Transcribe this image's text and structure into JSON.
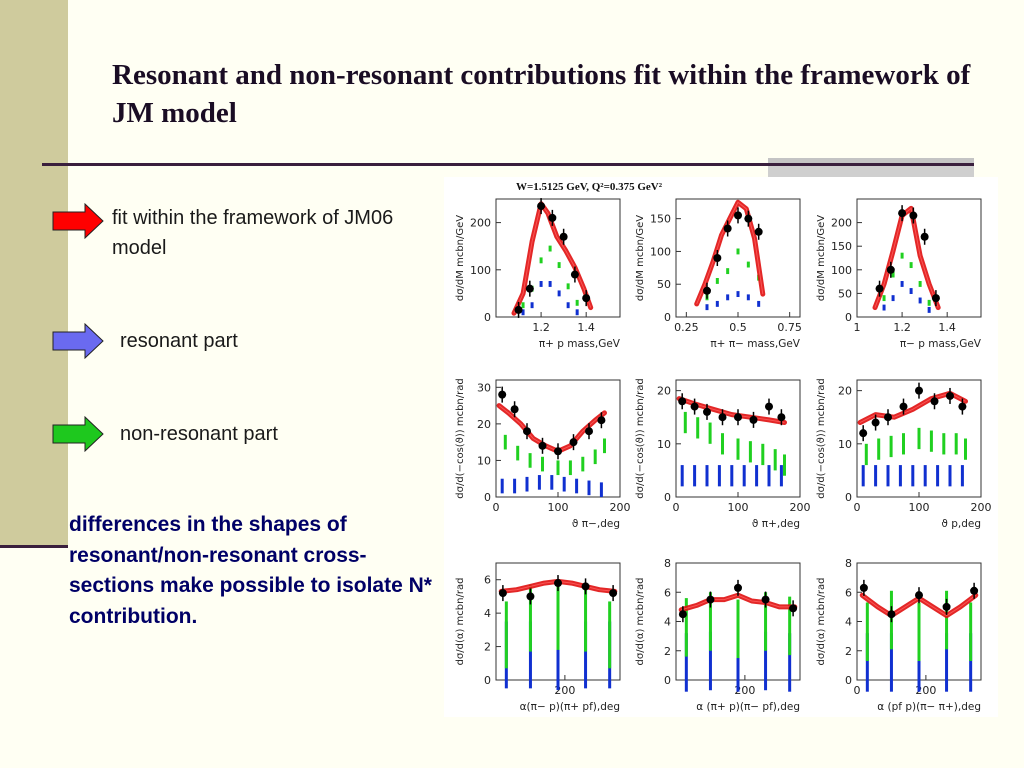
{
  "title": "Resonant and non-resonant contributions fit within the framework of JM model",
  "bullets": [
    {
      "text": "fit within the framework of JM06 model",
      "color": "#ff0000",
      "icon": "red-arrow-icon"
    },
    {
      "text": "resonant part",
      "color": "#6a6af0",
      "icon": "blue-arrow-icon"
    },
    {
      "text": "non-resonant part",
      "color": "#1ec81e",
      "icon": "green-arrow-icon"
    }
  ],
  "conclusion": "differences in the shapes of resonant/non-resonant cross-sections make possible to isolate N* contribution.",
  "colors": {
    "fit": "#e01010",
    "data": "#000000",
    "resonant": "#1030d0",
    "nonresonant": "#20d020",
    "text_conclusion": "#000066"
  },
  "chart_data": {
    "header": "W=1.5125 GeV, Q²=0.375 GeV²",
    "panels": [
      {
        "type": "scatter",
        "xlabel": "π+ p mass,GeV",
        "ylabel": "dσ/dM mcbn/GeV",
        "xlim": [
          1.0,
          1.55
        ],
        "ylim": [
          0,
          250
        ],
        "xticks": [
          {
            "v": 1.2,
            "t": "1.2"
          },
          {
            "v": 1.4,
            "t": "1.4"
          }
        ],
        "yticks": [
          {
            "v": 0,
            "t": "0"
          },
          {
            "v": 100,
            "t": "100"
          },
          {
            "v": 200,
            "t": "200"
          }
        ],
        "data": {
          "x": [
            1.1,
            1.15,
            1.2,
            1.25,
            1.3,
            1.35,
            1.4
          ],
          "y": [
            15,
            60,
            235,
            210,
            170,
            90,
            40
          ]
        },
        "fit": {
          "x": [
            1.08,
            1.12,
            1.16,
            1.2,
            1.23,
            1.27,
            1.31,
            1.35,
            1.39,
            1.42
          ],
          "y": [
            8,
            50,
            160,
            240,
            220,
            170,
            140,
            105,
            60,
            20
          ]
        },
        "nonresonant": {
          "x": [
            1.12,
            1.16,
            1.2,
            1.24,
            1.28,
            1.32,
            1.36
          ],
          "y": [
            25,
            60,
            120,
            145,
            110,
            65,
            30
          ]
        },
        "resonant": {
          "x": [
            1.12,
            1.16,
            1.2,
            1.24,
            1.28,
            1.32,
            1.36
          ],
          "y": [
            10,
            25,
            70,
            70,
            50,
            25,
            10
          ]
        }
      },
      {
        "type": "scatter",
        "xlabel": "π+ π− mass,GeV",
        "ylabel": "dσ/dM mcbn/GeV",
        "xlim": [
          0.2,
          0.8
        ],
        "ylim": [
          0,
          180
        ],
        "xticks": [
          {
            "v": 0.25,
            "t": "0.25"
          },
          {
            "v": 0.5,
            "t": "0.5"
          },
          {
            "v": 0.75,
            "t": "0.75"
          }
        ],
        "yticks": [
          {
            "v": 0,
            "t": "0"
          },
          {
            "v": 50,
            "t": "50"
          },
          {
            "v": 100,
            "t": "100"
          },
          {
            "v": 150,
            "t": "150"
          }
        ],
        "data": {
          "x": [
            0.35,
            0.4,
            0.45,
            0.5,
            0.55,
            0.6
          ],
          "y": [
            40,
            90,
            135,
            155,
            150,
            130
          ]
        },
        "fit": {
          "x": [
            0.3,
            0.34,
            0.38,
            0.42,
            0.46,
            0.5,
            0.54,
            0.58,
            0.62
          ],
          "y": [
            20,
            50,
            85,
            125,
            150,
            175,
            165,
            120,
            35
          ]
        },
        "nonresonant": {
          "x": [
            0.35,
            0.4,
            0.45,
            0.5,
            0.55,
            0.6
          ],
          "y": [
            30,
            55,
            70,
            100,
            80,
            60
          ]
        },
        "resonant": {
          "x": [
            0.35,
            0.4,
            0.45,
            0.5,
            0.55,
            0.6
          ],
          "y": [
            15,
            20,
            30,
            35,
            30,
            20
          ]
        }
      },
      {
        "type": "scatter",
        "xlabel": "π− p mass,GeV",
        "ylabel": "dσ/dM mcbn/GeV",
        "xlim": [
          1.0,
          1.55
        ],
        "ylim": [
          0,
          250
        ],
        "xticks": [
          {
            "v": 1.0,
            "t": "1"
          },
          {
            "v": 1.2,
            "t": "1.2"
          },
          {
            "v": 1.4,
            "t": "1.4"
          }
        ],
        "yticks": [
          {
            "v": 0,
            "t": "0"
          },
          {
            "v": 50,
            "t": "50"
          },
          {
            "v": 100,
            "t": "100"
          },
          {
            "v": 150,
            "t": "150"
          },
          {
            "v": 200,
            "t": "200"
          }
        ],
        "data": {
          "x": [
            1.1,
            1.15,
            1.2,
            1.25,
            1.3,
            1.35
          ],
          "y": [
            60,
            100,
            220,
            215,
            170,
            40
          ]
        },
        "fit": {
          "x": [
            1.08,
            1.12,
            1.16,
            1.2,
            1.24,
            1.28,
            1.32,
            1.36
          ],
          "y": [
            20,
            70,
            140,
            215,
            230,
            130,
            70,
            20
          ]
        },
        "nonresonant": {
          "x": [
            1.12,
            1.16,
            1.2,
            1.24,
            1.28,
            1.32
          ],
          "y": [
            40,
            90,
            130,
            110,
            70,
            30
          ]
        },
        "resonant": {
          "x": [
            1.12,
            1.16,
            1.2,
            1.24,
            1.28,
            1.32
          ],
          "y": [
            20,
            40,
            70,
            55,
            35,
            15
          ]
        }
      },
      {
        "type": "scatter",
        "xlabel": "ϑ π−,deg",
        "ylabel": "dσ/d(−cos(ϑ)) mcbn/rad",
        "xlim": [
          0,
          200
        ],
        "ylim": [
          0,
          32
        ],
        "xticks": [
          {
            "v": 0,
            "t": "0"
          },
          {
            "v": 100,
            "t": "100"
          },
          {
            "v": 200,
            "t": "200"
          }
        ],
        "yticks": [
          {
            "v": 0,
            "t": "0"
          },
          {
            "v": 10,
            "t": "10"
          },
          {
            "v": 20,
            "t": "20"
          },
          {
            "v": 30,
            "t": "30"
          }
        ],
        "data": {
          "x": [
            10,
            30,
            50,
            75,
            100,
            125,
            150,
            170
          ],
          "y": [
            28,
            24,
            18,
            14,
            12.5,
            15,
            18,
            21
          ]
        },
        "fit": {
          "x": [
            5,
            20,
            40,
            60,
            80,
            100,
            120,
            140,
            160,
            175
          ],
          "y": [
            25,
            23,
            20,
            16,
            14,
            12.5,
            14,
            18,
            21,
            23
          ]
        },
        "nonresonant": {
          "x": [
            15,
            35,
            55,
            75,
            100,
            120,
            140,
            160,
            175
          ],
          "y": [
            15,
            12,
            10,
            9,
            8,
            8,
            9,
            11,
            14
          ]
        },
        "resonant": {
          "x": [
            10,
            30,
            50,
            70,
            90,
            110,
            130,
            150,
            170
          ],
          "y": [
            3,
            3,
            3.5,
            4,
            4,
            3.5,
            3,
            2.5,
            2
          ]
        }
      },
      {
        "type": "scatter",
        "xlabel": "ϑ π+,deg",
        "ylabel": "dσ/d(−cos(ϑ)) mcbn/rad",
        "xlim": [
          0,
          200
        ],
        "ylim": [
          0,
          22
        ],
        "xticks": [
          {
            "v": 0,
            "t": "0"
          },
          {
            "v": 100,
            "t": "100"
          },
          {
            "v": 200,
            "t": "200"
          }
        ],
        "yticks": [
          {
            "v": 0,
            "t": "0"
          },
          {
            "v": 10,
            "t": "10"
          },
          {
            "v": 20,
            "t": "20"
          }
        ],
        "data": {
          "x": [
            10,
            30,
            50,
            75,
            100,
            125,
            150,
            170
          ],
          "y": [
            18,
            17,
            16,
            15,
            15,
            14.5,
            17,
            15
          ]
        },
        "fit": {
          "x": [
            5,
            30,
            60,
            90,
            120,
            150,
            175
          ],
          "y": [
            18.5,
            17.5,
            16.5,
            15.5,
            15,
            14.5,
            14
          ]
        },
        "nonresonant": {
          "x": [
            15,
            35,
            55,
            75,
            100,
            120,
            140,
            160,
            175
          ],
          "y": [
            14,
            13,
            12,
            10,
            9,
            8.5,
            8,
            7,
            6
          ]
        },
        "resonant": {
          "x": [
            10,
            30,
            50,
            70,
            90,
            110,
            130,
            150,
            170
          ],
          "y": [
            4,
            4,
            4,
            4,
            4,
            4,
            4,
            4,
            4
          ]
        }
      },
      {
        "type": "scatter",
        "xlabel": "ϑ p,deg",
        "ylabel": "dσ/d(−cos(ϑ)) mcbn/rad",
        "xlim": [
          0,
          200
        ],
        "ylim": [
          0,
          22
        ],
        "xticks": [
          {
            "v": 0,
            "t": "0"
          },
          {
            "v": 100,
            "t": "100"
          },
          {
            "v": 200,
            "t": "200"
          }
        ],
        "yticks": [
          {
            "v": 0,
            "t": "0"
          },
          {
            "v": 10,
            "t": "10"
          },
          {
            "v": 20,
            "t": "20"
          }
        ],
        "data": {
          "x": [
            10,
            30,
            50,
            75,
            100,
            125,
            150,
            170
          ],
          "y": [
            12,
            14,
            15,
            17,
            20,
            18,
            19,
            17
          ]
        },
        "fit": {
          "x": [
            5,
            30,
            60,
            90,
            120,
            150,
            175
          ],
          "y": [
            14,
            15.5,
            15,
            16.5,
            18.5,
            19.5,
            18
          ]
        },
        "nonresonant": {
          "x": [
            15,
            35,
            55,
            75,
            100,
            120,
            140,
            160,
            175
          ],
          "y": [
            8,
            9,
            9.5,
            10,
            11,
            10.5,
            10,
            10,
            9
          ]
        },
        "resonant": {
          "x": [
            10,
            30,
            50,
            70,
            90,
            110,
            130,
            150,
            170
          ],
          "y": [
            4,
            4,
            4,
            4,
            4,
            4,
            4,
            4,
            4
          ]
        }
      },
      {
        "type": "scatter",
        "xlabel": "α(π− p)(π+ pf),deg",
        "ylabel": "dσ/d(α) mcbn/rad",
        "xlim": [
          0,
          360
        ],
        "ylim": [
          0,
          7
        ],
        "xticks": [
          {
            "v": 200,
            "t": "200"
          }
        ],
        "yticks": [
          {
            "v": 0,
            "t": "0"
          },
          {
            "v": 2,
            "t": "2"
          },
          {
            "v": 4,
            "t": "4"
          },
          {
            "v": 6,
            "t": "6"
          }
        ],
        "data": {
          "x": [
            20,
            100,
            180,
            260,
            340
          ],
          "y": [
            5.2,
            5.0,
            5.8,
            5.6,
            5.2
          ]
        },
        "fit": {
          "x": [
            15,
            60,
            100,
            140,
            180,
            220,
            260,
            300,
            345
          ],
          "y": [
            5.3,
            5.4,
            5.6,
            5.8,
            5.9,
            5.8,
            5.6,
            5.4,
            5.3
          ]
        },
        "nonresonant": {
          "x": [
            30,
            100,
            180,
            260,
            330
          ],
          "y": [
            2.7,
            3.7,
            3.8,
            3.7,
            2.7
          ]
        },
        "resonant": {
          "x": [
            30,
            100,
            180,
            260,
            330
          ],
          "y": [
            1.5,
            1.5,
            1.4,
            1.5,
            1.5
          ]
        }
      },
      {
        "type": "scatter",
        "xlabel": "α (π+ p)(π− pf),deg",
        "ylabel": "dσ/d(α) mcbn/rad",
        "xlim": [
          0,
          360
        ],
        "ylim": [
          0,
          8
        ],
        "xticks": [
          {
            "v": 200,
            "t": "200"
          }
        ],
        "yticks": [
          {
            "v": 0,
            "t": "0"
          },
          {
            "v": 2,
            "t": "2"
          },
          {
            "v": 4,
            "t": "4"
          },
          {
            "v": 6,
            "t": "6"
          },
          {
            "v": 8,
            "t": "8"
          }
        ],
        "data": {
          "x": [
            20,
            100,
            180,
            260,
            340
          ],
          "y": [
            4.5,
            5.5,
            6.3,
            5.5,
            4.9
          ]
        },
        "fit": {
          "x": [
            15,
            60,
            100,
            140,
            180,
            220,
            260,
            300,
            345
          ],
          "y": [
            4.8,
            5.1,
            5.5,
            5.5,
            5.8,
            5.4,
            5.3,
            5.0,
            5.0
          ]
        },
        "nonresonant": {
          "x": [
            30,
            100,
            180,
            260,
            330
          ],
          "y": [
            3.6,
            4.0,
            3.5,
            4.0,
            3.7
          ]
        },
        "resonant": {
          "x": [
            30,
            100,
            180,
            260,
            330
          ],
          "y": [
            1.2,
            1.3,
            1.2,
            1.3,
            1.2
          ]
        }
      },
      {
        "type": "scatter",
        "xlabel": "α (pf p)(π− π+),deg",
        "ylabel": "dσ/d(α) mcbn/rad",
        "xlim": [
          0,
          360
        ],
        "ylim": [
          0,
          8
        ],
        "xticks": [
          {
            "v": 0,
            "t": "0"
          },
          {
            "v": 200,
            "t": "200"
          }
        ],
        "yticks": [
          {
            "v": 0,
            "t": "0"
          },
          {
            "v": 2,
            "t": "2"
          },
          {
            "v": 4,
            "t": "4"
          },
          {
            "v": 6,
            "t": "6"
          },
          {
            "v": 8,
            "t": "8"
          }
        ],
        "data": {
          "x": [
            20,
            100,
            180,
            260,
            340
          ],
          "y": [
            6.3,
            4.5,
            5.8,
            5.0,
            6.1
          ]
        },
        "fit": {
          "x": [
            15,
            60,
            100,
            140,
            180,
            220,
            260,
            300,
            345
          ],
          "y": [
            5.8,
            5.0,
            4.4,
            5.0,
            5.6,
            5.0,
            4.4,
            5.0,
            5.8
          ]
        },
        "nonresonant": {
          "x": [
            30,
            100,
            180,
            260,
            330
          ],
          "y": [
            3.3,
            4.1,
            3.3,
            4.1,
            3.3
          ]
        },
        "resonant": {
          "x": [
            30,
            100,
            180,
            260,
            330
          ],
          "y": [
            1.2,
            1.2,
            1.2,
            1.2,
            1.2
          ]
        }
      }
    ]
  }
}
